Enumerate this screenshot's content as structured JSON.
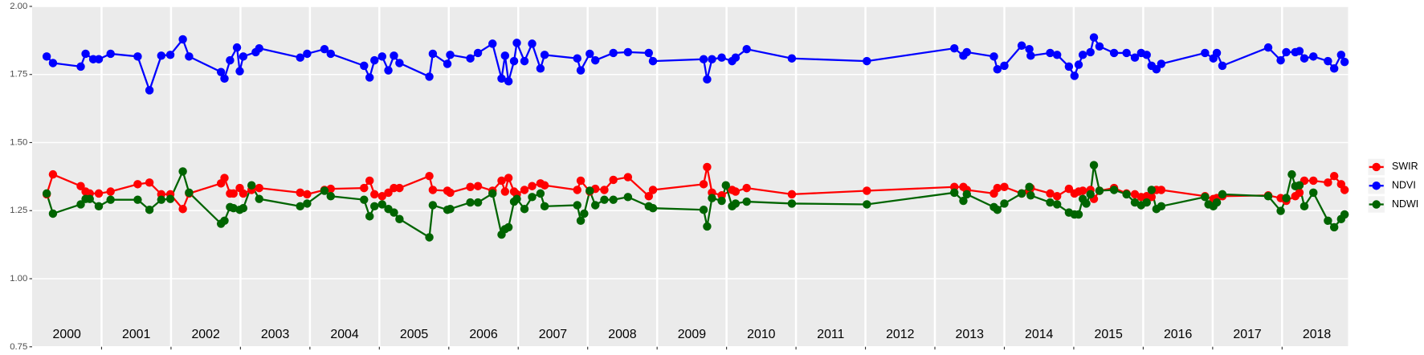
{
  "chart_data": {
    "type": "line",
    "xlim": [
      2000,
      2018.95
    ],
    "ylim": [
      0.75,
      2.0
    ],
    "yticks": [
      {
        "value": 0.75,
        "label": "0.75"
      },
      {
        "value": 1.0,
        "label": "1.00"
      },
      {
        "value": 1.25,
        "label": "1.25"
      },
      {
        "value": 1.5,
        "label": "1.50"
      },
      {
        "value": 1.75,
        "label": "1.75"
      },
      {
        "value": 2.0,
        "label": "2.00"
      }
    ],
    "xticks": [
      {
        "value": 2000.5,
        "label": "2000"
      },
      {
        "value": 2001.5,
        "label": "2001"
      },
      {
        "value": 2002.5,
        "label": "2002"
      },
      {
        "value": 2003.5,
        "label": "2003"
      },
      {
        "value": 2004.5,
        "label": "2004"
      },
      {
        "value": 2005.5,
        "label": "2005"
      },
      {
        "value": 2006.5,
        "label": "2006"
      },
      {
        "value": 2007.5,
        "label": "2007"
      },
      {
        "value": 2008.5,
        "label": "2008"
      },
      {
        "value": 2009.5,
        "label": "2009"
      },
      {
        "value": 2010.5,
        "label": "2010"
      },
      {
        "value": 2011.5,
        "label": "2011"
      },
      {
        "value": 2012.5,
        "label": "2012"
      },
      {
        "value": 2013.5,
        "label": "2013"
      },
      {
        "value": 2014.5,
        "label": "2014"
      },
      {
        "value": 2015.5,
        "label": "2015"
      },
      {
        "value": 2016.5,
        "label": "2016"
      },
      {
        "value": 2017.5,
        "label": "2017"
      },
      {
        "value": 2018.5,
        "label": "2018"
      }
    ],
    "xgrid": [
      2001,
      2002,
      2003,
      2004,
      2005,
      2006,
      2007,
      2008,
      2009,
      2010,
      2011,
      2012,
      2013,
      2014,
      2015,
      2016,
      2017,
      2018
    ],
    "grid": true,
    "legend": "right",
    "series": [
      {
        "name": "SWIR",
        "color": "#ff0000",
        "x": [
          2000.21,
          2000.3,
          2000.7,
          2000.77,
          2000.83,
          2000.96,
          2001.13,
          2001.52,
          2001.69,
          2001.86,
          2001.99,
          2002.17,
          2002.26,
          2002.72,
          2002.77,
          2002.85,
          2002.9,
          2002.99,
          2003.04,
          2003.16,
          2003.27,
          2003.86,
          2003.96,
          2004.21,
          2004.3,
          2004.78,
          2004.86,
          2004.93,
          2005.04,
          2005.13,
          2005.21,
          2005.29,
          2005.72,
          2005.77,
          2005.98,
          2006.02,
          2006.31,
          2006.42,
          2006.63,
          2006.76,
          2006.81,
          2006.86,
          2006.94,
          2006.98,
          2007.09,
          2007.2,
          2007.32,
          2007.38,
          2007.85,
          2007.9,
          2008.03,
          2008.11,
          2008.24,
          2008.37,
          2008.58,
          2008.88,
          2008.94,
          2009.67,
          2009.72,
          2009.79,
          2009.93,
          2010.08,
          2010.13,
          2010.29,
          2010.94,
          2012.02,
          2013.28,
          2013.41,
          2013.46,
          2013.85,
          2013.9,
          2014.0,
          2014.25,
          2014.36,
          2014.38,
          2014.66,
          2014.76,
          2014.93,
          2015.01,
          2015.07,
          2015.13,
          2015.24,
          2015.29,
          2015.37,
          2015.58,
          2015.76,
          2015.88,
          2015.97,
          2016.05,
          2016.12,
          2016.19,
          2016.26,
          2016.89,
          2017.01,
          2017.06,
          2017.14,
          2017.8,
          2017.98,
          2018.06,
          2018.19,
          2018.25,
          2018.32,
          2018.45,
          2018.66,
          2018.75,
          2018.85,
          2018.9
        ],
        "values": [
          1.31,
          1.383,
          1.34,
          1.32,
          1.313,
          1.313,
          1.32,
          1.347,
          1.353,
          1.31,
          1.31,
          1.256,
          1.313,
          1.35,
          1.37,
          1.313,
          1.313,
          1.333,
          1.313,
          1.326,
          1.333,
          1.316,
          1.31,
          1.326,
          1.33,
          1.333,
          1.36,
          1.31,
          1.303,
          1.316,
          1.333,
          1.333,
          1.377,
          1.326,
          1.323,
          1.316,
          1.337,
          1.34,
          1.323,
          1.36,
          1.32,
          1.37,
          1.32,
          1.31,
          1.326,
          1.34,
          1.35,
          1.343,
          1.326,
          1.36,
          1.32,
          1.33,
          1.326,
          1.363,
          1.373,
          1.303,
          1.326,
          1.347,
          1.41,
          1.316,
          1.306,
          1.326,
          1.32,
          1.333,
          1.31,
          1.323,
          1.337,
          1.337,
          1.326,
          1.313,
          1.333,
          1.337,
          1.313,
          1.32,
          1.333,
          1.313,
          1.303,
          1.33,
          1.313,
          1.32,
          1.323,
          1.326,
          1.293,
          1.323,
          1.333,
          1.313,
          1.31,
          1.3,
          1.303,
          1.3,
          1.326,
          1.326,
          1.303,
          1.293,
          1.296,
          1.303,
          1.306,
          1.296,
          1.286,
          1.303,
          1.316,
          1.36,
          1.36,
          1.353,
          1.377,
          1.347,
          1.326
        ]
      },
      {
        "name": "NDVI",
        "color": "#0000ff",
        "x": [
          2000.21,
          2000.3,
          2000.7,
          2000.77,
          2000.88,
          2000.96,
          2001.13,
          2001.52,
          2001.69,
          2001.86,
          2001.99,
          2002.17,
          2002.26,
          2002.72,
          2002.77,
          2002.85,
          2002.95,
          2002.99,
          2003.04,
          2003.22,
          2003.27,
          2003.86,
          2003.96,
          2004.21,
          2004.3,
          2004.78,
          2004.86,
          2004.93,
          2005.04,
          2005.13,
          2005.21,
          2005.29,
          2005.72,
          2005.77,
          2005.98,
          2006.02,
          2006.31,
          2006.42,
          2006.63,
          2006.76,
          2006.81,
          2006.86,
          2006.94,
          2006.98,
          2007.09,
          2007.2,
          2007.32,
          2007.38,
          2007.85,
          2007.9,
          2008.03,
          2008.11,
          2008.37,
          2008.58,
          2008.88,
          2008.94,
          2009.67,
          2009.72,
          2009.79,
          2009.93,
          2010.08,
          2010.13,
          2010.29,
          2010.94,
          2012.02,
          2013.28,
          2013.41,
          2013.46,
          2013.85,
          2013.9,
          2014.0,
          2014.25,
          2014.36,
          2014.38,
          2014.66,
          2014.76,
          2014.93,
          2015.01,
          2015.07,
          2015.13,
          2015.24,
          2015.29,
          2015.37,
          2015.58,
          2015.76,
          2015.88,
          2015.97,
          2016.05,
          2016.12,
          2016.19,
          2016.26,
          2016.89,
          2017.01,
          2017.06,
          2017.14,
          2017.8,
          2017.98,
          2018.06,
          2018.19,
          2018.25,
          2018.32,
          2018.45,
          2018.66,
          2018.75,
          2018.85,
          2018.9
        ],
        "values": [
          1.816,
          1.792,
          1.779,
          1.826,
          1.806,
          1.806,
          1.826,
          1.816,
          1.692,
          1.819,
          1.822,
          1.879,
          1.816,
          1.759,
          1.735,
          1.802,
          1.849,
          1.762,
          1.816,
          1.832,
          1.846,
          1.812,
          1.826,
          1.843,
          1.826,
          1.782,
          1.739,
          1.802,
          1.816,
          1.765,
          1.819,
          1.792,
          1.742,
          1.826,
          1.789,
          1.822,
          1.809,
          1.829,
          1.863,
          1.735,
          1.819,
          1.725,
          1.799,
          1.866,
          1.799,
          1.863,
          1.772,
          1.822,
          1.809,
          1.765,
          1.826,
          1.802,
          1.829,
          1.832,
          1.829,
          1.799,
          1.806,
          1.732,
          1.806,
          1.812,
          1.799,
          1.812,
          1.843,
          1.809,
          1.799,
          1.846,
          1.819,
          1.832,
          1.816,
          1.769,
          1.782,
          1.856,
          1.843,
          1.819,
          1.829,
          1.822,
          1.779,
          1.745,
          1.786,
          1.822,
          1.832,
          1.886,
          1.853,
          1.829,
          1.829,
          1.812,
          1.829,
          1.822,
          1.782,
          1.769,
          1.789,
          1.829,
          1.809,
          1.829,
          1.782,
          1.849,
          1.802,
          1.832,
          1.832,
          1.836,
          1.809,
          1.816,
          1.799,
          1.772,
          1.822,
          1.796
        ]
      },
      {
        "name": "NDWI",
        "color": "#006400",
        "x": [
          2000.21,
          2000.3,
          2000.7,
          2000.77,
          2000.83,
          2000.96,
          2001.13,
          2001.52,
          2001.69,
          2001.86,
          2001.99,
          2002.17,
          2002.26,
          2002.72,
          2002.77,
          2002.85,
          2002.9,
          2002.99,
          2003.04,
          2003.16,
          2003.27,
          2003.86,
          2003.96,
          2004.21,
          2004.3,
          2004.78,
          2004.86,
          2004.93,
          2005.04,
          2005.13,
          2005.21,
          2005.29,
          2005.72,
          2005.77,
          2005.98,
          2006.02,
          2006.31,
          2006.42,
          2006.63,
          2006.76,
          2006.81,
          2006.86,
          2006.94,
          2006.98,
          2007.09,
          2007.2,
          2007.32,
          2007.38,
          2007.85,
          2007.9,
          2007.95,
          2008.03,
          2008.11,
          2008.24,
          2008.37,
          2008.58,
          2008.88,
          2008.94,
          2009.67,
          2009.72,
          2009.79,
          2009.93,
          2009.99,
          2010.08,
          2010.13,
          2010.29,
          2010.94,
          2012.02,
          2013.28,
          2013.41,
          2013.46,
          2013.85,
          2013.9,
          2014.0,
          2014.25,
          2014.36,
          2014.38,
          2014.66,
          2014.76,
          2014.93,
          2015.01,
          2015.07,
          2015.13,
          2015.18,
          2015.24,
          2015.29,
          2015.37,
          2015.58,
          2015.76,
          2015.88,
          2015.97,
          2016.05,
          2016.12,
          2016.19,
          2016.26,
          2016.89,
          2016.94,
          2017.01,
          2017.06,
          2017.14,
          2017.8,
          2017.98,
          2018.06,
          2018.14,
          2018.19,
          2018.25,
          2018.32,
          2018.45,
          2018.66,
          2018.75,
          2018.85,
          2018.9
        ],
        "values": [
          1.313,
          1.239,
          1.273,
          1.293,
          1.293,
          1.266,
          1.29,
          1.29,
          1.253,
          1.29,
          1.293,
          1.394,
          1.316,
          1.202,
          1.213,
          1.263,
          1.259,
          1.253,
          1.259,
          1.343,
          1.293,
          1.266,
          1.276,
          1.323,
          1.303,
          1.29,
          1.229,
          1.266,
          1.273,
          1.256,
          1.243,
          1.219,
          1.152,
          1.27,
          1.253,
          1.256,
          1.28,
          1.28,
          1.313,
          1.162,
          1.182,
          1.189,
          1.283,
          1.293,
          1.256,
          1.3,
          1.313,
          1.266,
          1.27,
          1.213,
          1.239,
          1.323,
          1.27,
          1.29,
          1.29,
          1.3,
          1.266,
          1.259,
          1.253,
          1.192,
          1.296,
          1.286,
          1.343,
          1.266,
          1.276,
          1.283,
          1.276,
          1.273,
          1.316,
          1.286,
          1.31,
          1.263,
          1.253,
          1.276,
          1.313,
          1.337,
          1.306,
          1.28,
          1.273,
          1.243,
          1.236,
          1.236,
          1.293,
          1.276,
          1.31,
          1.417,
          1.323,
          1.326,
          1.31,
          1.28,
          1.27,
          1.28,
          1.326,
          1.256,
          1.266,
          1.3,
          1.273,
          1.266,
          1.28,
          1.31,
          1.303,
          1.249,
          1.296,
          1.383,
          1.34,
          1.343,
          1.266,
          1.316,
          1.213,
          1.189,
          1.219,
          1.236
        ]
      }
    ]
  }
}
